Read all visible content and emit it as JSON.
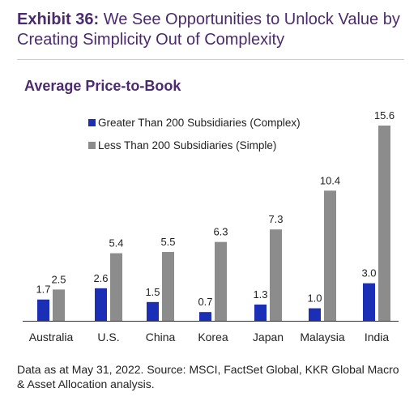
{
  "exhibit": {
    "label": "Exhibit 36:",
    "title": " We See Opportunities to Unlock Value by Creating Simplicity Out of Complexity"
  },
  "chart_title": "Average Price-to-Book",
  "footnote": "Data as at May 31, 2022. Source: MSCI, FactSet Global, KKR Global Macro & Asset Allocation analysis.",
  "colors": {
    "complex": "#1a2fb5",
    "simple": "#8c8c8c",
    "title": "#4b2a6e"
  },
  "chart_data": {
    "type": "bar",
    "title": "Average Price-to-Book",
    "categories": [
      "Australia",
      "U.S.",
      "China",
      "Korea",
      "Japan",
      "Malaysia",
      "India"
    ],
    "series": [
      {
        "name": "Greater Than 200 Subsidiaries (Complex)",
        "color": "#1a2fb5",
        "values": [
          1.7,
          2.6,
          1.5,
          0.7,
          1.3,
          1.0,
          3.0
        ]
      },
      {
        "name": "Less Than 200 Subsidiaries (Simple)",
        "color": "#8c8c8c",
        "values": [
          2.5,
          5.4,
          5.5,
          6.3,
          7.3,
          10.4,
          15.6
        ]
      }
    ],
    "value_labels": [
      [
        "1.7",
        "2.6",
        "1.5",
        "0.7",
        "1.3",
        "1.0",
        "3.0"
      ],
      [
        "2.5",
        "5.4",
        "5.5",
        "6.3",
        "7.3",
        "10.4",
        "15.6"
      ]
    ],
    "ylim": [
      0,
      15.6
    ],
    "grid": false,
    "y_axis_shown": false,
    "legend_position": "top-left"
  }
}
